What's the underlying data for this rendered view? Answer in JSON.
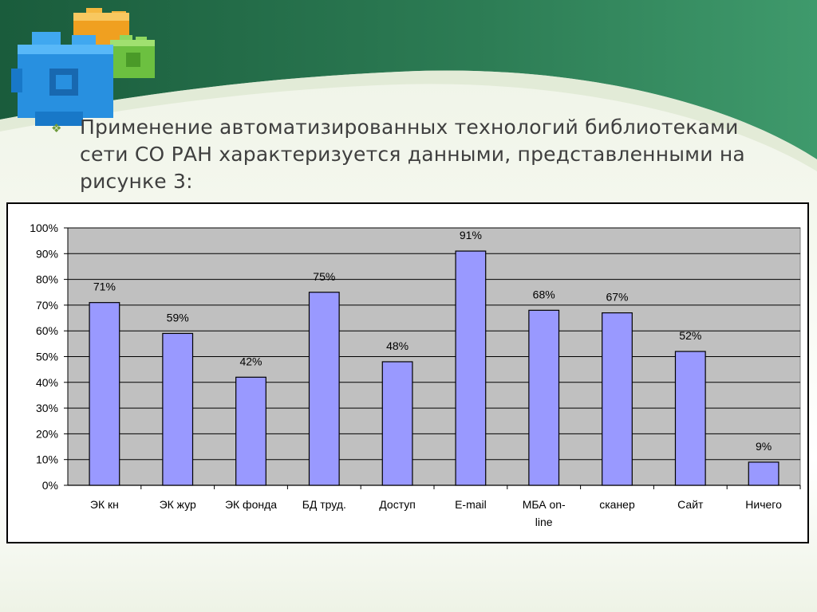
{
  "slide": {
    "bullet_symbol": "❖",
    "text": "Применение автоматизированных технологий библиотеками сети СО РАН характеризуется данными, представленными на рисунке 3:"
  },
  "colors": {
    "header_green_dark": "#1f6b45",
    "header_green_light": "#3a9a6a",
    "plot_bg": "#c0c0c0",
    "bar_fill": "#9999ff",
    "bar_stroke": "#000000"
  },
  "chart_data": {
    "type": "bar",
    "categories": [
      "ЭК кн",
      "ЭК жур",
      "ЭК фонда",
      "БД труд.",
      "Доступ",
      "E-mail",
      "МБА on-line",
      "сканер",
      "Сайт",
      "Ничего"
    ],
    "category_lines": [
      [
        "ЭК кн"
      ],
      [
        "ЭК жур"
      ],
      [
        "ЭК фонда"
      ],
      [
        "БД труд."
      ],
      [
        "Доступ"
      ],
      [
        "E-mail"
      ],
      [
        "МБА on-",
        "line"
      ],
      [
        "сканер"
      ],
      [
        "Сайт"
      ],
      [
        "Ничего"
      ]
    ],
    "values": [
      71,
      59,
      42,
      75,
      48,
      91,
      68,
      67,
      52,
      9
    ],
    "data_labels": [
      "71%",
      "59%",
      "42%",
      "75%",
      "48%",
      "91%",
      "68%",
      "67%",
      "52%",
      "9%"
    ],
    "y_ticks": [
      "0%",
      "10%",
      "20%",
      "30%",
      "40%",
      "50%",
      "60%",
      "70%",
      "80%",
      "90%",
      "100%"
    ],
    "ylim": [
      0,
      100
    ],
    "grid": true,
    "legend": "none",
    "title": "",
    "xlabel": "",
    "ylabel": ""
  }
}
